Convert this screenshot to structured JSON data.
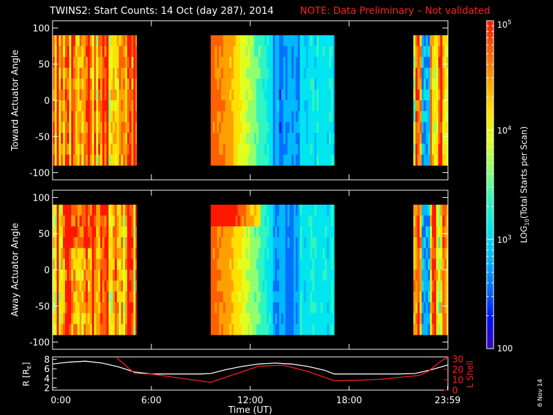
{
  "header": {
    "title": "TWINS2: Start Counts: 14 Oct (day 287), 2014",
    "note": "NOTE: Data Preliminary – Not validated",
    "note_color": "#ff2020"
  },
  "side_date": "6 Nov 14",
  "chart_data": [
    {
      "type": "heatmap",
      "ylabel": "Toward Actuator Angle",
      "ylim": [
        -110,
        110
      ],
      "yticks": [
        "100",
        "50",
        "0",
        "-50",
        "-100"
      ],
      "ytick_values": [
        100,
        50,
        0,
        -50,
        -100
      ],
      "data_angle_range": [
        -90,
        90
      ],
      "x_range_hours": [
        0,
        24
      ],
      "data_segments_hours": [
        [
          0.0,
          5.1
        ],
        [
          9.6,
          17.1
        ],
        [
          21.9,
          24.0
        ]
      ]
    },
    {
      "type": "heatmap",
      "ylabel": "Away Actuator Angle",
      "ylim": [
        -110,
        110
      ],
      "yticks": [
        "100",
        "50",
        "0",
        "-50",
        "-100"
      ],
      "ytick_values": [
        100,
        50,
        0,
        -50,
        -100
      ],
      "data_angle_range": [
        -90,
        90
      ],
      "x_range_hours": [
        0,
        24
      ],
      "data_segments_hours": [
        [
          0.0,
          5.1
        ],
        [
          9.6,
          17.1
        ],
        [
          21.9,
          24.0
        ]
      ]
    },
    {
      "type": "line",
      "ylabel_left": "R [R",
      "ylabel_left_sub": "E",
      "ylabel_left_end": "]",
      "ylabel_right": "L Shell",
      "yticks_left": [
        "8",
        "6",
        "4",
        "2"
      ],
      "ytick_values_left": [
        8,
        6,
        4,
        2
      ],
      "ylim_left": [
        1.5,
        8.5
      ],
      "yticks_right": [
        "30",
        "20",
        "10",
        "0"
      ],
      "ytick_values_right": [
        30,
        20,
        10,
        0
      ],
      "ylim_right": [
        0,
        32
      ],
      "xlabel": "Time (UT)",
      "xticks": [
        "0:00",
        "6:00",
        "12:00",
        "18:00",
        "23:59"
      ],
      "xtick_values": [
        0,
        6,
        12,
        18,
        23.98
      ],
      "series": [
        {
          "color": "#ffffff",
          "axis": "left",
          "x": [
            0,
            1,
            2,
            3,
            4,
            5,
            6,
            7,
            8,
            9,
            9.6,
            10.5,
            11.5,
            12.5,
            13.5,
            14.5,
            15.5,
            16.5,
            17.1,
            18,
            19,
            20,
            21,
            22,
            23,
            24
          ],
          "y": [
            7.0,
            7.4,
            7.6,
            7.2,
            6.4,
            5.3,
            4.9,
            4.9,
            4.9,
            4.9,
            5.0,
            5.8,
            6.5,
            7.0,
            7.2,
            7.0,
            6.5,
            5.7,
            4.9,
            4.9,
            4.9,
            4.9,
            4.9,
            5.0,
            5.8,
            6.8
          ]
        },
        {
          "color": "#ff2020",
          "axis": "right",
          "x": [
            3.9,
            5.0,
            6.0,
            7.5,
            9.6,
            11.0,
            12.5,
            14.0,
            15.5,
            17.1,
            18.5,
            20.0,
            21.5,
            22.2,
            22.8,
            23.5,
            24
          ],
          "y": [
            31,
            16,
            15.5,
            12,
            7.5,
            15,
            23,
            24,
            18,
            9,
            9.5,
            10.5,
            13,
            14,
            18,
            27,
            33
          ]
        }
      ]
    }
  ],
  "colorbar": {
    "label_main": "LOG",
    "label_sub": "10",
    "label_rest": "(Total Starts per Scan)",
    "scale": "log",
    "range": [
      100,
      100000
    ],
    "ticks": [
      {
        "value": 100,
        "label": "100"
      },
      {
        "value": 1000,
        "label_base": "10",
        "label_exp": "3"
      },
      {
        "value": 10000,
        "label_base": "10",
        "label_exp": "4"
      },
      {
        "value": 100000,
        "label_base": "10",
        "label_exp": "5"
      }
    ],
    "colors": [
      "#3b06b8",
      "#0010ff",
      "#0070ff",
      "#00b8ff",
      "#00e5ee",
      "#30f5c0",
      "#90ff70",
      "#e0ff20",
      "#ffe000",
      "#ffa000",
      "#ff6000",
      "#ff1800"
    ]
  }
}
